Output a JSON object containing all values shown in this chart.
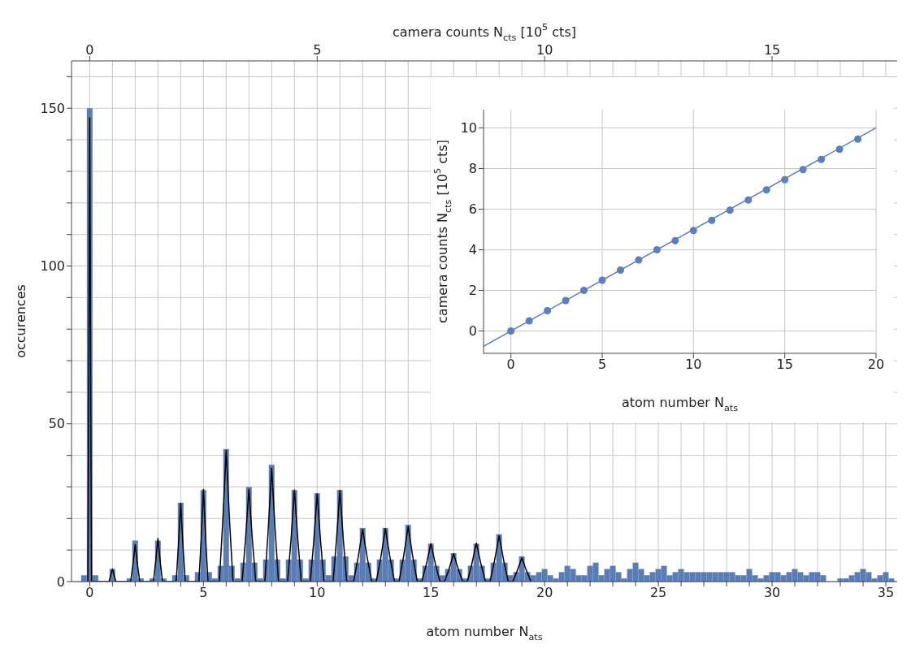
{
  "chart_data": [
    {
      "type": "histogram",
      "xlabel": "atom number N$_{ats}$",
      "ylabel": "occurences",
      "x2label": "camera counts N$_{cts}$ [10$^{5}$ cts]",
      "xlim": [
        -0.8,
        35.5
      ],
      "ylim": [
        0,
        165
      ],
      "x2lim": [
        -0.4,
        17.75
      ],
      "x2ticks": [
        0,
        5,
        10,
        15
      ],
      "grid": true,
      "xticks": [
        0,
        {
          "value": 1,
          "label": null
        },
        {
          "value": 2,
          "label": null
        },
        {
          "value": 3,
          "label": null
        },
        {
          "value": 4,
          "label": null
        },
        5,
        {
          "value": 6,
          "label": null
        },
        {
          "value": 7,
          "label": null
        },
        {
          "value": 8,
          "label": null
        },
        {
          "value": 9,
          "label": null
        },
        10,
        {
          "value": 11,
          "label": null
        },
        {
          "value": 12,
          "label": null
        },
        {
          "value": 13,
          "label": null
        },
        {
          "value": 14,
          "label": null
        },
        15,
        {
          "value": 16,
          "label": null
        },
        {
          "value": 17,
          "label": null
        },
        {
          "value": 18,
          "label": null
        },
        {
          "value": 19,
          "label": null
        },
        20,
        {
          "value": 21,
          "label": null
        },
        {
          "value": 22,
          "label": null
        },
        {
          "value": 23,
          "label": null
        },
        {
          "value": 24,
          "label": null
        },
        25,
        {
          "value": 26,
          "label": null
        },
        {
          "value": 27,
          "label": null
        },
        {
          "value": 28,
          "label": null
        },
        {
          "value": 29,
          "label": null
        },
        30,
        {
          "value": 31,
          "label": null
        },
        {
          "value": 32,
          "label": null
        },
        {
          "value": 33,
          "label": null
        },
        {
          "value": 34,
          "label": null
        },
        35
      ],
      "yticks": [
        0,
        {
          "value": 10,
          "label": null
        },
        {
          "value": 20,
          "label": null
        },
        {
          "value": 30,
          "label": null
        },
        {
          "value": 40,
          "label": null
        },
        50,
        {
          "value": 60,
          "label": null
        },
        {
          "value": 70,
          "label": null
        },
        {
          "value": 80,
          "label": null
        },
        {
          "value": 90,
          "label": null
        },
        100,
        {
          "value": 110,
          "label": null
        },
        {
          "value": 120,
          "label": null
        },
        {
          "value": 130,
          "label": null
        },
        {
          "value": 140,
          "label": null
        },
        150,
        {
          "value": 160,
          "label": null
        }
      ],
      "series": [
        {
          "type": "histogram",
          "color": "#5a7db5",
          "bins": [
            -0.625,
            -0.375,
            -0.125,
            0.125,
            0.375,
            0.625,
            0.875,
            1.125,
            1.375,
            1.625,
            1.875,
            2.125,
            2.375,
            2.625,
            2.875,
            3.125,
            3.375,
            3.625,
            3.875,
            4.125,
            4.375,
            4.625,
            4.875,
            5.125,
            5.375,
            5.625,
            5.875,
            6.125,
            6.375,
            6.625,
            6.875,
            7.125,
            7.375,
            7.625,
            7.875,
            8.125,
            8.375,
            8.625,
            8.875,
            9.125,
            9.375,
            9.625,
            9.875,
            10.125,
            10.375,
            10.625,
            10.875,
            11.125,
            11.375,
            11.625,
            11.875,
            12.125,
            12.375,
            12.625,
            12.875,
            13.125,
            13.375,
            13.625,
            13.875,
            14.125,
            14.375,
            14.625,
            14.875,
            15.125,
            15.375,
            15.625,
            15.875,
            16.125,
            16.375,
            16.625,
            16.875,
            17.125,
            17.375,
            17.625,
            17.875,
            18.125,
            18.375,
            18.625,
            18.875,
            19.125,
            19.375,
            19.625,
            19.875,
            20.125,
            20.375,
            20.625,
            20.875,
            21.125,
            21.375,
            21.625,
            21.875,
            22.125,
            22.375,
            22.625,
            22.875,
            23.125,
            23.375,
            23.625,
            23.875,
            24.125,
            24.375,
            24.625,
            24.875,
            25.125,
            25.375,
            25.625,
            25.875,
            26.125,
            26.375,
            26.625,
            26.875,
            27.125,
            27.375,
            27.625,
            27.875,
            28.125,
            28.375,
            28.625,
            28.875,
            29.125,
            29.375,
            29.625,
            29.875,
            30.125,
            30.375,
            30.625,
            30.875,
            31.125,
            31.375,
            31.625,
            31.875,
            32.125,
            32.375,
            32.625,
            32.875,
            33.125,
            33.375,
            33.625,
            33.875,
            34.125,
            34.375,
            34.625,
            34.875,
            35.125,
            35.375
          ],
          "values": [
            0,
            2,
            150,
            2,
            0,
            0,
            4,
            0,
            0,
            1,
            13,
            1,
            0,
            1,
            13,
            1,
            0,
            2,
            25,
            2,
            0,
            3,
            29,
            3,
            1,
            5,
            42,
            5,
            1,
            6,
            30,
            6,
            1,
            7,
            37,
            7,
            1,
            7,
            29,
            7,
            1,
            7,
            28,
            7,
            2,
            8,
            29,
            8,
            2,
            6,
            17,
            6,
            1,
            7,
            17,
            7,
            1,
            7,
            18,
            7,
            1,
            5,
            12,
            5,
            2,
            4,
            9,
            4,
            1,
            5,
            12,
            5,
            1,
            6,
            15,
            6,
            2,
            3,
            8,
            3,
            2,
            3,
            4,
            2,
            1,
            3,
            5,
            4,
            2,
            2,
            5,
            6,
            2,
            4,
            5,
            3,
            1,
            4,
            6,
            4,
            2,
            3,
            4,
            5,
            2,
            3,
            4,
            3,
            3,
            3,
            3,
            3,
            3,
            3,
            3,
            3,
            2,
            2,
            4,
            2,
            1,
            2,
            3,
            3,
            2,
            3,
            4,
            3,
            2,
            3,
            3,
            2,
            0,
            0,
            1,
            1,
            2,
            3,
            4,
            3,
            1,
            2,
            3,
            1
          ]
        },
        {
          "type": "line",
          "color": "#000000",
          "x": [
            -0.08,
            -0.04,
            0,
            0.04,
            0.08,
            0.85,
            0.92,
            1,
            1.08,
            1.15,
            1.8,
            1.9,
            2,
            2.1,
            2.2,
            2.8,
            2.9,
            3,
            3.1,
            3.2,
            3.8,
            3.9,
            4,
            4.1,
            4.2,
            4.8,
            4.9,
            5,
            5.1,
            5.2,
            5.7,
            5.85,
            6,
            6.15,
            6.3,
            6.7,
            6.85,
            7,
            7.15,
            7.3,
            7.7,
            7.85,
            8,
            8.15,
            8.3,
            8.7,
            8.85,
            9,
            9.15,
            9.3,
            9.7,
            9.85,
            10,
            10.15,
            10.3,
            10.7,
            10.85,
            11,
            11.15,
            11.3,
            11.6,
            11.8,
            12,
            12.2,
            12.4,
            12.6,
            12.8,
            13,
            13.2,
            13.4,
            13.6,
            13.8,
            14,
            14.2,
            14.4,
            14.6,
            14.8,
            15,
            15.2,
            15.4,
            15.6,
            15.8,
            16,
            16.2,
            16.4,
            16.6,
            16.8,
            17,
            17.2,
            17.4,
            17.6,
            17.8,
            18,
            18.2,
            18.4,
            18.6,
            18.8,
            19,
            19.2,
            19.4
          ],
          "values": [
            0,
            68,
            147,
            68,
            0,
            0,
            1.8,
            4,
            1.8,
            0,
            0,
            5.4,
            11.7,
            5.4,
            0,
            0,
            6.3,
            13.7,
            6.3,
            0,
            0,
            11.4,
            24.8,
            11.4,
            0,
            0,
            13.4,
            29.2,
            13.4,
            0,
            0,
            19.1,
            41.5,
            19.1,
            0,
            0,
            13.4,
            29.2,
            13.4,
            0,
            0,
            16.6,
            36,
            16.6,
            0,
            0,
            13.3,
            29,
            13.3,
            0,
            0,
            12.8,
            27.8,
            12.8,
            0,
            0,
            13.3,
            28.9,
            13.3,
            0,
            0,
            7.6,
            16.5,
            7.6,
            0,
            0,
            7.7,
            16.8,
            7.7,
            0,
            0,
            8,
            17.5,
            8,
            0,
            0,
            5.5,
            12,
            5.5,
            0,
            0,
            4,
            8.8,
            4,
            0,
            0,
            5.6,
            12.2,
            5.6,
            0,
            0,
            6.7,
            14.5,
            6.7,
            0,
            0,
            3.5,
            7.5,
            3.5,
            0
          ]
        }
      ]
    },
    {
      "type": "scatter",
      "xlabel": "atom number N$_{ats}$",
      "ylabel": "camera counts N$_{cts}$ [10$^{5}$ cts]",
      "xlim": [
        -1.5,
        20
      ],
      "ylim": [
        -1.1,
        10.9
      ],
      "xticks": [
        0,
        5,
        10,
        15,
        20
      ],
      "yticks": [
        0,
        2,
        4,
        6,
        8,
        10
      ],
      "grid": true,
      "series": [
        {
          "type": "scatter",
          "color": "#5b7fbf",
          "marker": "circle",
          "x": [
            0,
            1,
            2,
            3,
            4,
            5,
            6,
            7,
            8,
            9,
            10,
            11,
            12,
            13,
            14,
            15,
            16,
            17,
            18,
            19
          ],
          "values": [
            0,
            0.5,
            1,
            1.5,
            2,
            2.5,
            3,
            3.5,
            4,
            4.45,
            4.95,
            5.45,
            5.95,
            6.45,
            6.95,
            7.45,
            7.95,
            8.45,
            8.95,
            9.45
          ]
        },
        {
          "type": "line",
          "color": "#5b7fbf",
          "x": [
            -1.5,
            20
          ],
          "values": [
            -0.75,
            10
          ]
        }
      ]
    }
  ]
}
